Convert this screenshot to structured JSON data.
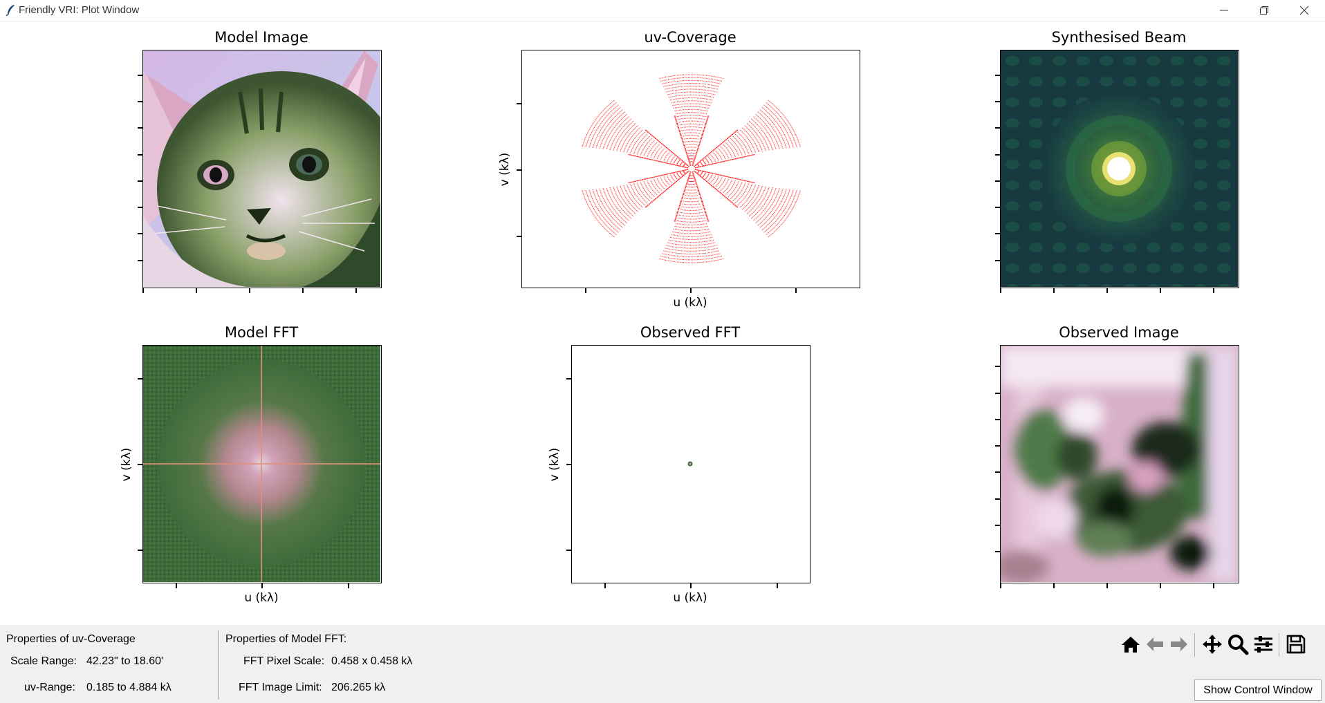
{
  "window": {
    "title": "Friendly VRI: Plot Window"
  },
  "panels": {
    "model_image": {
      "title": "Model Image"
    },
    "uv_coverage": {
      "title": "uv-Coverage",
      "xlabel": "u (kλ)",
      "ylabel": "v (kλ)"
    },
    "synth_beam": {
      "title": "Synthesised Beam"
    },
    "model_fft": {
      "title": "Model FFT",
      "xlabel": "u (kλ)",
      "ylabel": "v (kλ)"
    },
    "observed_fft": {
      "title": "Observed FFT",
      "xlabel": "u (kλ)",
      "ylabel": "v (kλ)"
    },
    "observed_image": {
      "title": "Observed Image"
    }
  },
  "uv_props": {
    "heading": "Properties of uv-Coverage",
    "scale_label": "Scale Range:",
    "scale_value": "42.23\" to 18.60'",
    "range_label": "uv-Range:",
    "range_value": "0.185 to 4.884 kλ"
  },
  "fft_props": {
    "heading": "Properties of Model FFT:",
    "pixel_label": "FFT Pixel Scale:",
    "pixel_value": "0.458 x 0.458 kλ",
    "limit_label": "FFT Image Limit:",
    "limit_value": "206.265 kλ"
  },
  "toolbar": {
    "icons": [
      "home-icon",
      "back-arrow-icon",
      "forward-arrow-icon",
      "pan-icon",
      "zoom-icon",
      "configure-subplots-icon",
      "save-icon"
    ]
  },
  "control_button": {
    "label": "Show Control Window"
  },
  "colors": {
    "uv_points": "#ff2020",
    "fft_green": "#3d6b3a",
    "beam_bg": "#173a40"
  }
}
